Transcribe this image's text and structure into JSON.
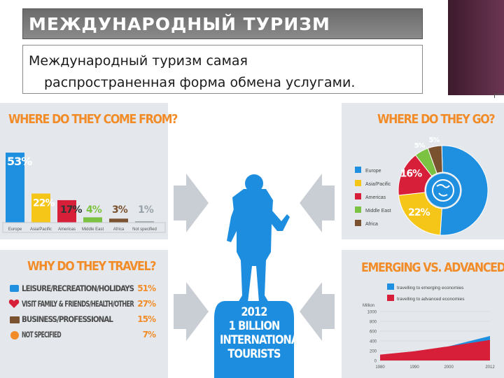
{
  "slide": {
    "title": "МЕЖДУНАРОДНЫЙ ТУРИЗМ",
    "subtitle_line1": "Международный туризм самая",
    "subtitle_line2": "распространенная форма обмена услугами."
  },
  "center": {
    "line1": "2012",
    "line2": "1 BILLION",
    "line3": "INTERNATIONAL",
    "line4": "TOURISTS"
  },
  "colors": {
    "accent_orange": "#f28c28",
    "europe": "#1f8fe0",
    "asia_pacific": "#f5c518",
    "americas": "#d71f3a",
    "middle_east": "#7cc242",
    "africa": "#7a5230",
    "tourist_blue": "#1d8de0",
    "panel_bg": "#e4e8ec"
  },
  "chart_data": [
    {
      "type": "bar",
      "title": "WHERE DO THEY COME FROM?",
      "categories": [
        "Europe",
        "Asia/Pacific",
        "Americas",
        "Middle East",
        "Africa",
        "Not specified"
      ],
      "values": [
        53,
        22,
        17,
        4,
        3,
        1
      ],
      "value_labels": [
        "53%",
        "22%",
        "17%",
        "4%",
        "3%",
        "1%"
      ]
    },
    {
      "type": "pie",
      "title": "WHERE DO THEY GO?",
      "labels": [
        "Europe",
        "Asia/Pacific",
        "Americas",
        "Middle East",
        "Africa"
      ],
      "values": [
        51,
        22,
        16,
        5,
        5
      ],
      "value_labels": [
        "51%",
        "22%",
        "16%",
        "5%",
        "5%"
      ]
    },
    {
      "type": "bar",
      "title": "WHY DO THEY TRAVEL?",
      "categories": [
        "LEISURE/RECREATION/HOLIDAYS",
        "VISIT FAMILY & FRIENDS/HEALTH/OTHER",
        "BUSINESS/PROFESSIONAL",
        "NOT SPECIFIED"
      ],
      "values": [
        51,
        27,
        15,
        7
      ],
      "value_labels": [
        "51%",
        "27%",
        "15%",
        "7%"
      ],
      "icons": [
        "camera-icon",
        "heart-icon",
        "briefcase-icon",
        "question-icon"
      ]
    },
    {
      "type": "area",
      "title": "EMERGING VS. ADVANCED",
      "ylabel": "Million",
      "ylim": [
        0,
        1000
      ],
      "yticks": [
        0,
        200,
        400,
        600,
        800,
        1000
      ],
      "x": [
        1980,
        1990,
        2000,
        2012
      ],
      "series": [
        {
          "name": "travelling to emerging economies",
          "values": [
            70,
            140,
            290,
            500
          ]
        },
        {
          "name": "travelling to advanced economies",
          "values": [
            120,
            190,
            290,
            420
          ]
        }
      ]
    }
  ]
}
